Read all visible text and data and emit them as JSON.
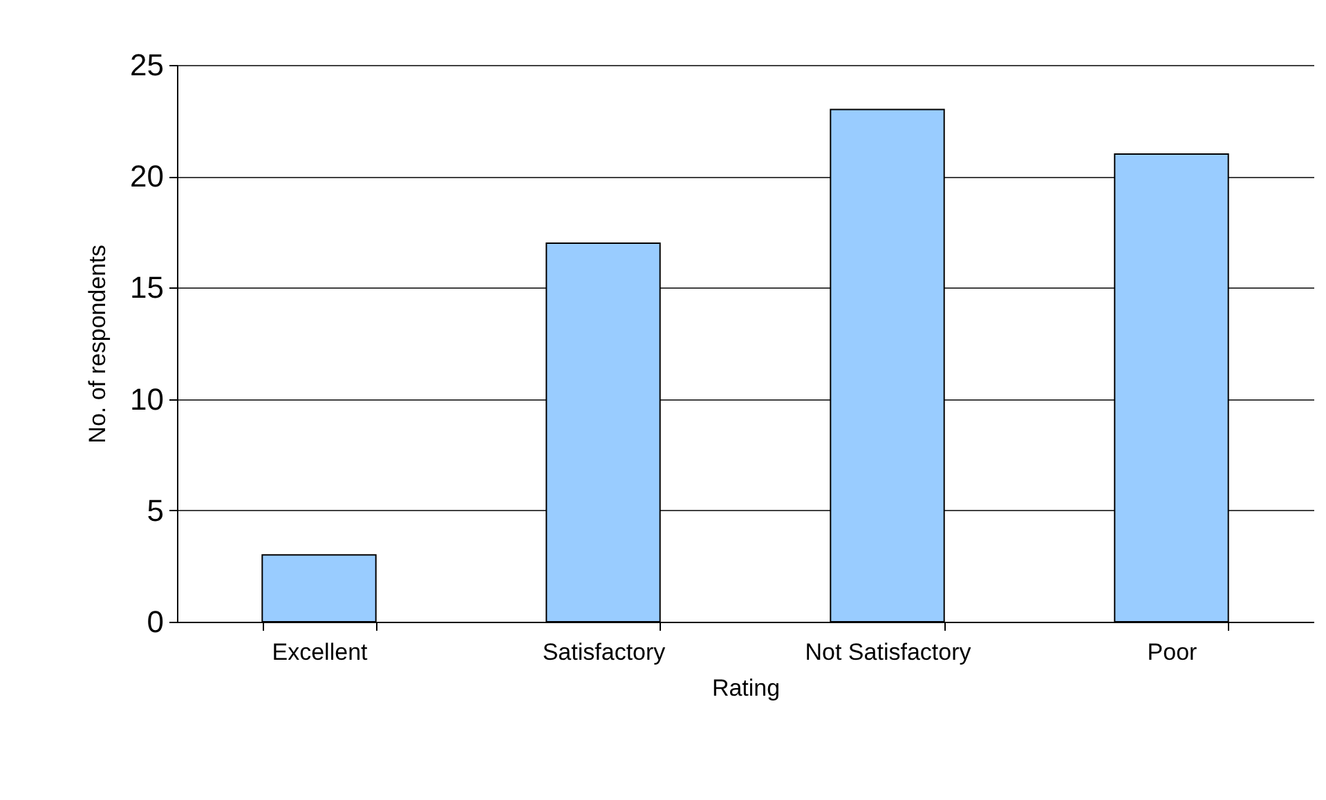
{
  "chart_data": {
    "type": "bar",
    "xlabel": "Rating",
    "ylabel": "No. of respondents",
    "categories": [
      "Excellent",
      "Satisfactory",
      "Not Satisfactory",
      "Poor"
    ],
    "values": [
      3,
      17,
      23,
      21
    ],
    "color": "#99ccff",
    "ylim": [
      0,
      25
    ],
    "yticks": [
      0,
      5,
      10,
      15,
      20,
      25
    ],
    "grid": "y"
  }
}
